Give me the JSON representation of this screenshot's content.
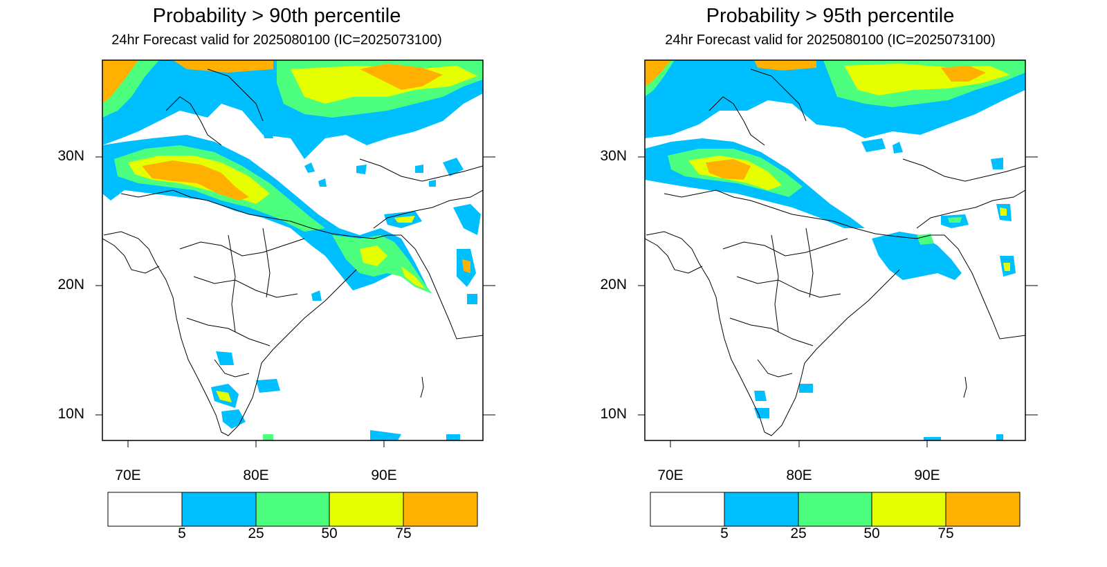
{
  "panels": [
    {
      "title": "Probability > 90th percentile",
      "subtitle": "24hr Forecast valid for 2025080100 (IC=2025073100)"
    },
    {
      "title": "Probability > 95th percentile",
      "subtitle": "24hr Forecast valid for 2025080100 (IC=2025073100)"
    }
  ],
  "axes": {
    "lat_labels": [
      "30N",
      "20N",
      "10N"
    ],
    "lon_labels": [
      "70E",
      "80E",
      "90E"
    ]
  },
  "colorbar": {
    "levels": [
      "5",
      "25",
      "50",
      "75"
    ],
    "colors": [
      "#ffffff",
      "#00bfff",
      "#4dff7f",
      "#e6ff00",
      "#ffb000"
    ]
  }
}
